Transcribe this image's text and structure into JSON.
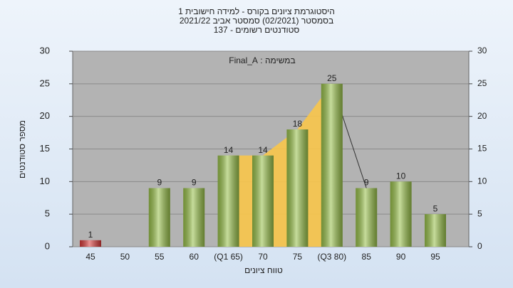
{
  "chart_data": {
    "type": "bar",
    "title": "היסטוגרמת ציונים בקורס - למידה חישובית 1",
    "subtitle": "בסמסטר  (02/2021)  סמסטר אביב 2021/22",
    "subtitle2": "סטודנטים רשומים - 137",
    "annotation": "במשימה : Final_A",
    "x_label": "טווח ציונים",
    "y_label": "מספר סטודנטים",
    "categories": [
      "45",
      "50",
      "55",
      "60",
      "(Q1 65)",
      "70",
      "75",
      "(Q3 80)",
      "85",
      "90",
      "95"
    ],
    "values": [
      1,
      null,
      9,
      9,
      14,
      14,
      18,
      25,
      9,
      10,
      5
    ],
    "colors": [
      "#d83a3a",
      null,
      "#98c04a",
      "#98c04a",
      "#98c04a",
      "#98c04a",
      "#98c04a",
      "#98c04a",
      "#98c04a",
      "#98c04a",
      "#98c04a"
    ],
    "quartile_color": "#f8c54a",
    "ylim": [
      0,
      30
    ],
    "yticks": [
      0,
      5,
      10,
      15,
      20,
      25,
      30
    ],
    "y2lim": [
      0,
      30
    ],
    "y2ticks": [
      0,
      5,
      10,
      15,
      20,
      25,
      30
    ],
    "grid": true
  }
}
